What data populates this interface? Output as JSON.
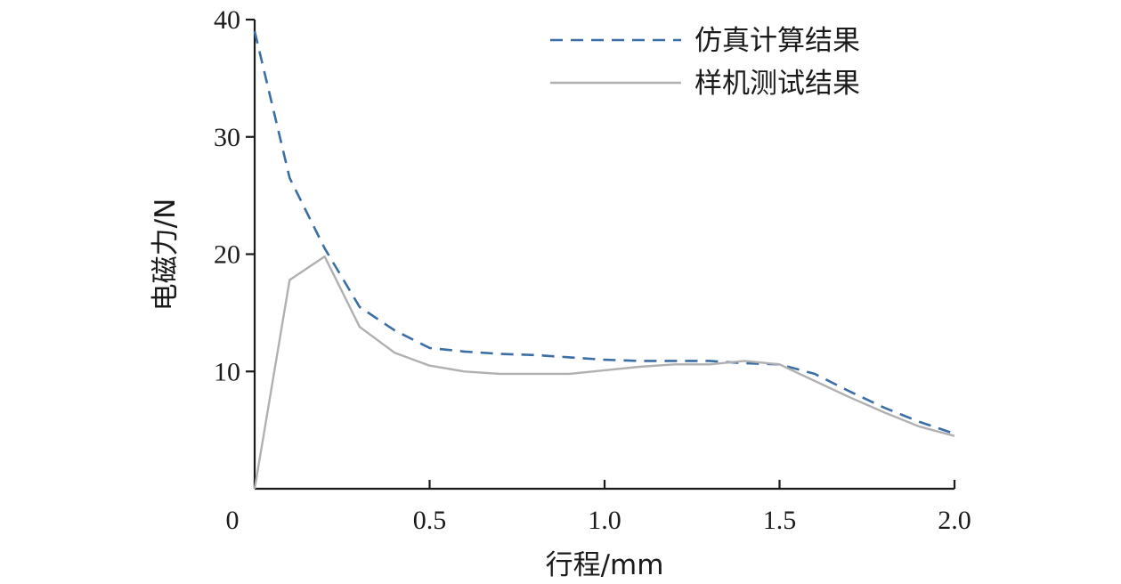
{
  "chart_data": {
    "type": "line",
    "xlabel": "行程/mm",
    "ylabel": "电磁力/N",
    "xlim": [
      0,
      2.0
    ],
    "ylim": [
      0,
      40
    ],
    "x_ticks": [
      0,
      0.5,
      1.0,
      1.5,
      2.0
    ],
    "x_tick_labels": [
      "0",
      "0.5",
      "1.0",
      "1.5",
      "2.0"
    ],
    "y_ticks": [
      10,
      20,
      30,
      40
    ],
    "y_tick_labels": [
      "10",
      "20",
      "30",
      "40"
    ],
    "grid": false,
    "legend_position": "top-right",
    "series": [
      {
        "name": "仿真计算结果",
        "style": "dashed",
        "color": "#3a6ea5",
        "x": [
          0,
          0.1,
          0.2,
          0.3,
          0.4,
          0.5,
          0.6,
          0.7,
          0.8,
          0.9,
          1.0,
          1.1,
          1.2,
          1.3,
          1.4,
          1.5,
          1.6,
          1.7,
          1.8,
          1.9,
          2.0
        ],
        "values": [
          39.0,
          26.5,
          20.5,
          15.5,
          13.5,
          12.0,
          11.7,
          11.5,
          11.4,
          11.2,
          11.0,
          10.9,
          10.9,
          10.9,
          10.7,
          10.6,
          9.8,
          8.3,
          6.9,
          5.7,
          4.7
        ]
      },
      {
        "name": "样机测试结果",
        "style": "solid",
        "color": "#b0b0b2",
        "x": [
          0,
          0.1,
          0.2,
          0.3,
          0.4,
          0.5,
          0.6,
          0.7,
          0.8,
          0.9,
          1.0,
          1.1,
          1.2,
          1.3,
          1.4,
          1.5,
          1.6,
          1.7,
          1.8,
          1.9,
          2.0
        ],
        "values": [
          0,
          17.8,
          19.8,
          13.8,
          11.6,
          10.5,
          10.0,
          9.8,
          9.8,
          9.8,
          10.1,
          10.4,
          10.6,
          10.6,
          10.9,
          10.6,
          9.2,
          7.8,
          6.5,
          5.3,
          4.5
        ]
      }
    ]
  }
}
